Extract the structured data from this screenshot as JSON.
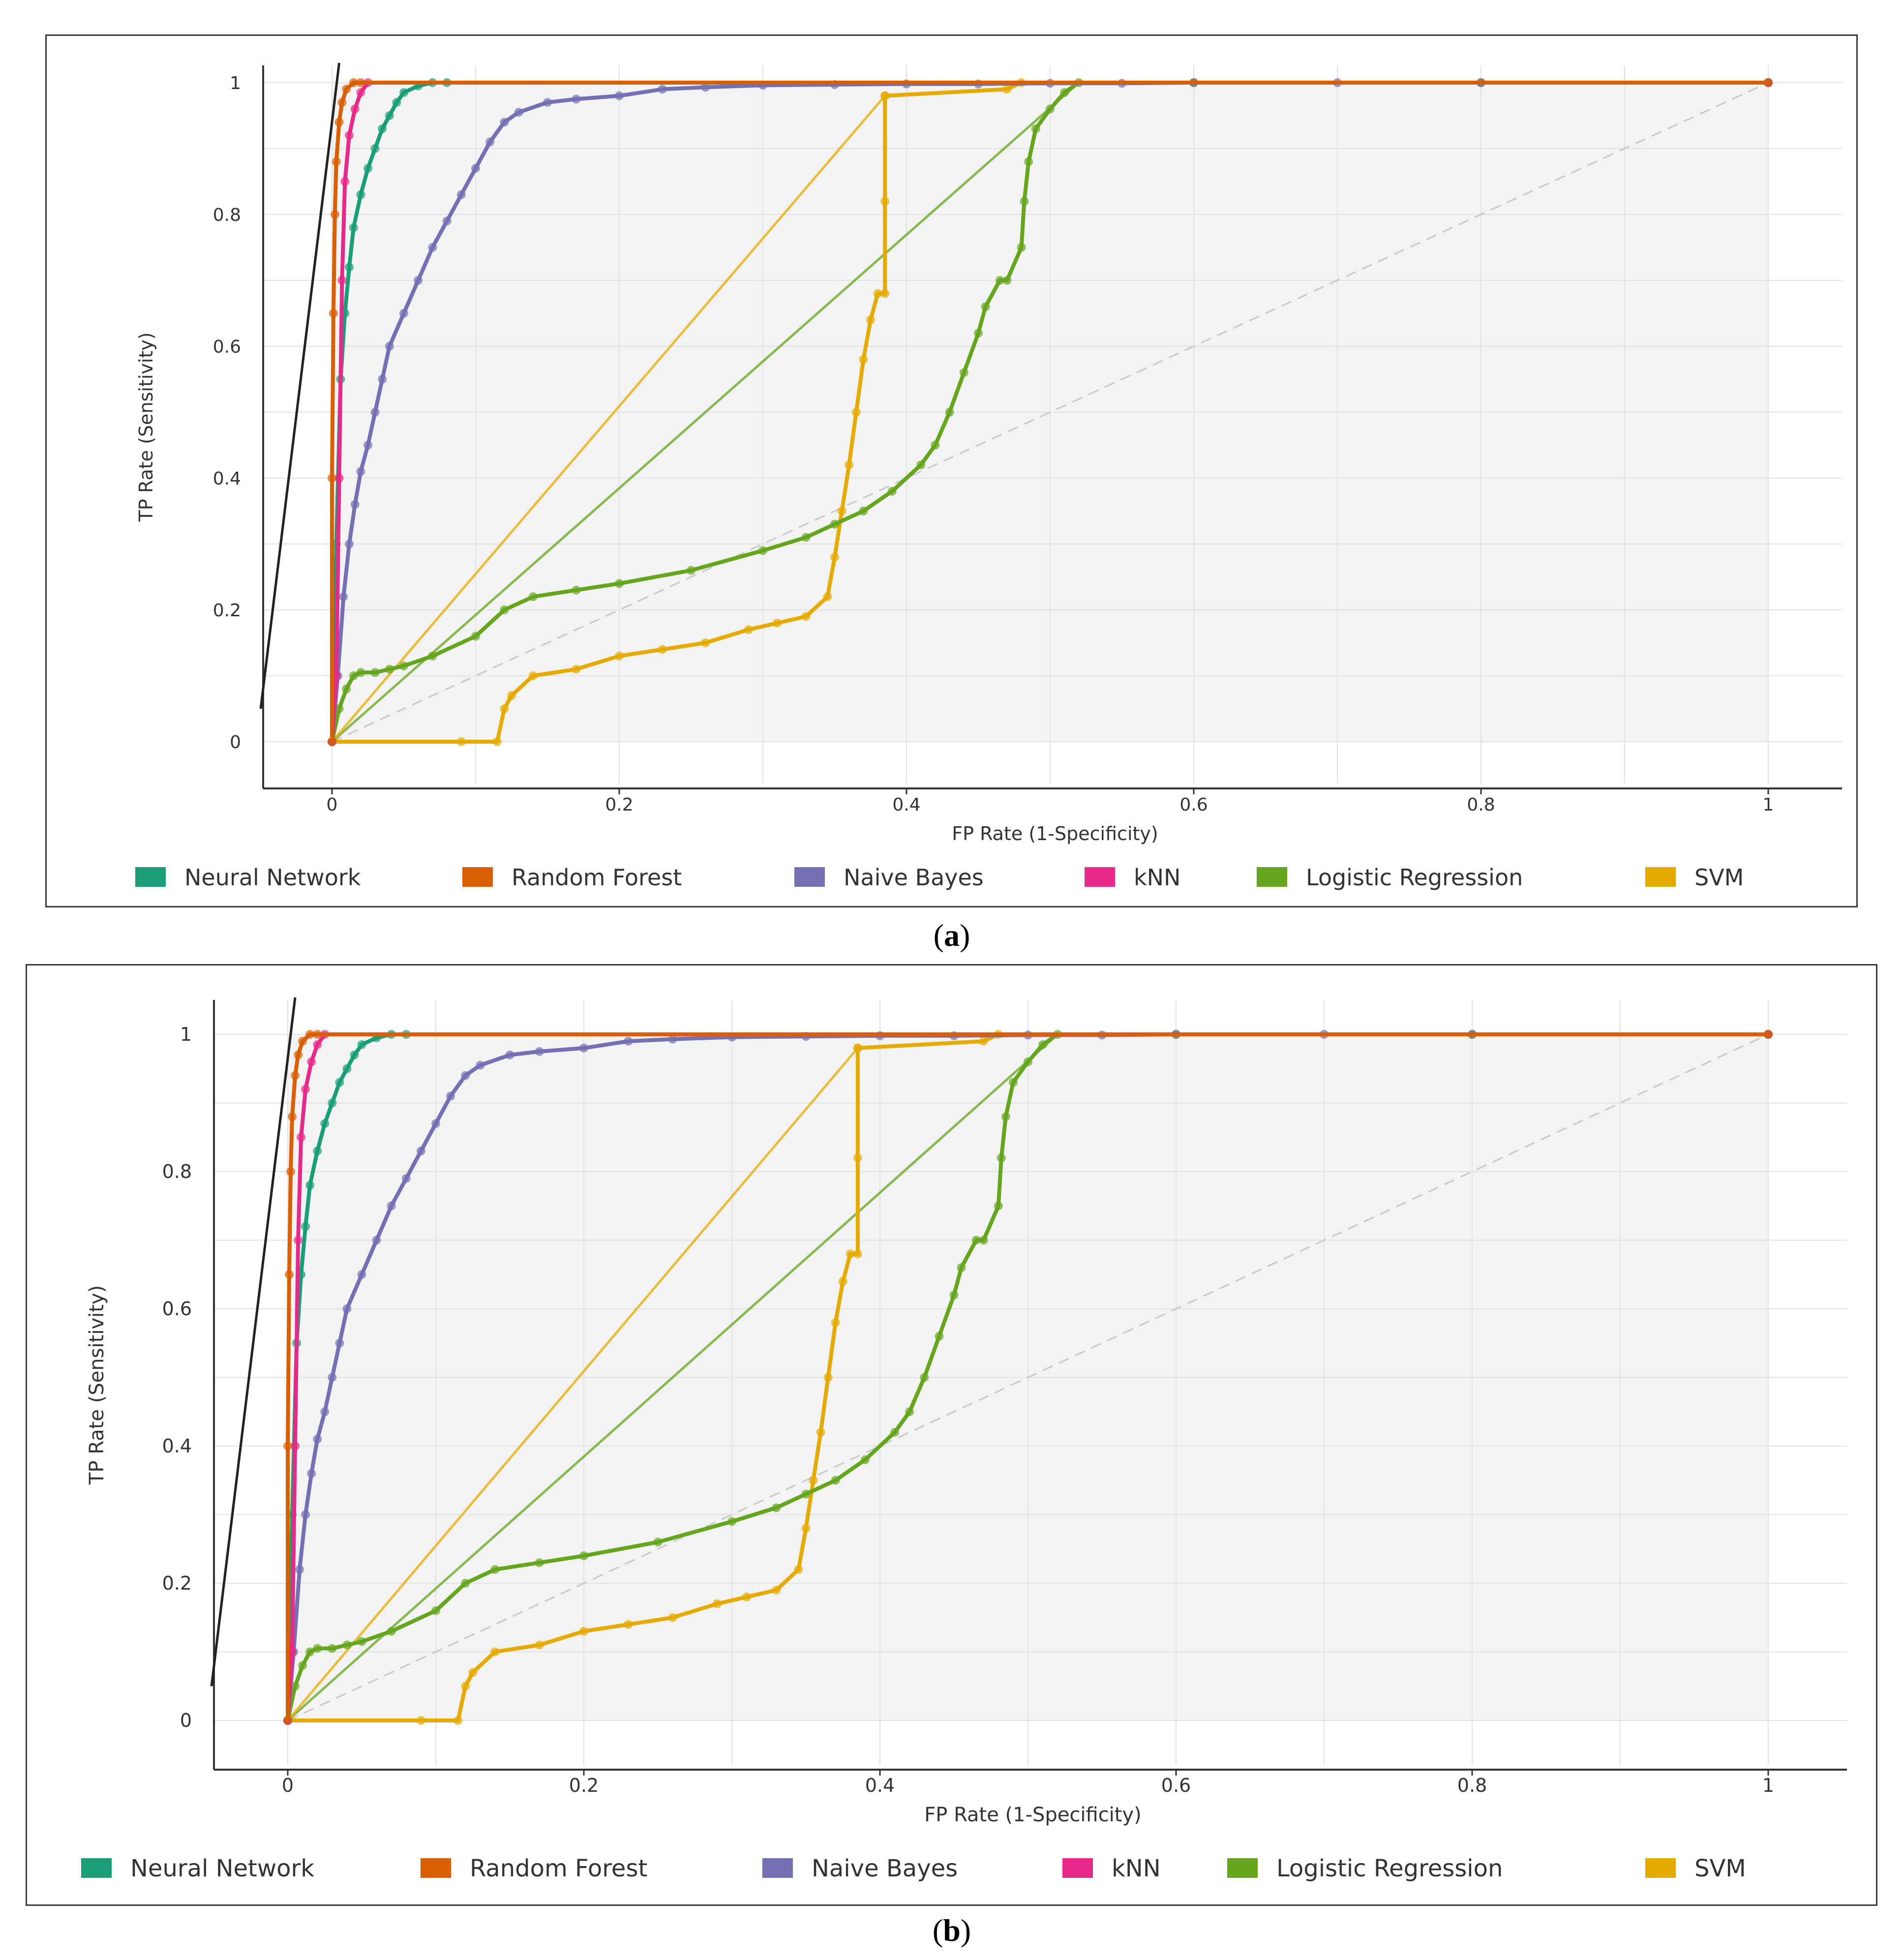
{
  "colors": {
    "neural_network": "#1a9e77",
    "random_forest": "#d95f02",
    "naive_bayes": "#7570b3",
    "knn": "#e7298a",
    "logistic_regression": "#66a61e",
    "svm": "#e6ab02"
  },
  "chart_data": [
    {
      "type": "line",
      "panel": "a",
      "caption_open": "(",
      "caption_label": "a",
      "caption_close": ")",
      "xlabel": "FP Rate (1-Specificity)",
      "ylabel": "TP Rate (Sensitivity)",
      "xlim": [
        -0.05,
        1.05
      ],
      "ylim": [
        -0.05,
        1.05
      ],
      "x_ticks": [
        0,
        0.2,
        0.4,
        0.6,
        0.8,
        1
      ],
      "x_tick_labels": [
        "0",
        "0.2",
        "0.4",
        "0.6",
        "0.8",
        "1"
      ],
      "y_ticks": [
        0,
        0.2,
        0.4,
        0.6,
        0.8,
        1
      ],
      "y_tick_labels": [
        "0",
        "0.2",
        "0.4",
        "0.6",
        "0.8",
        "1"
      ],
      "grid": true,
      "diagonal": [
        [
          0,
          0
        ],
        [
          1,
          1
        ]
      ],
      "legend_position": "bottom",
      "legend": [
        "Neural Network",
        "Random Forest",
        "Naive Bayes",
        "kNN",
        "Logistic Regression",
        "SVM"
      ],
      "series": [
        {
          "name": "Neural Network",
          "color_key": "neural_network",
          "x": [
            0,
            0.003,
            0.006,
            0.009,
            0.012,
            0.015,
            0.02,
            0.025,
            0.03,
            0.035,
            0.04,
            0.045,
            0.05,
            0.06,
            0.07,
            0.08,
            1
          ],
          "y": [
            0,
            0.3,
            0.55,
            0.65,
            0.72,
            0.78,
            0.83,
            0.87,
            0.9,
            0.93,
            0.95,
            0.97,
            0.985,
            0.995,
            1,
            1,
            1
          ]
        },
        {
          "name": "Random Forest",
          "color_key": "random_forest",
          "x": [
            0,
            0.0,
            0.001,
            0.002,
            0.003,
            0.005,
            0.007,
            0.01,
            0.015,
            0.02,
            1
          ],
          "y": [
            0,
            0.4,
            0.65,
            0.8,
            0.88,
            0.94,
            0.97,
            0.99,
            1,
            1,
            1
          ]
        },
        {
          "name": "Naive Bayes",
          "color_key": "naive_bayes",
          "x": [
            0,
            0.004,
            0.008,
            0.012,
            0.016,
            0.02,
            0.025,
            0.03,
            0.035,
            0.04,
            0.05,
            0.06,
            0.07,
            0.08,
            0.09,
            0.1,
            0.11,
            0.12,
            0.13,
            0.15,
            0.17,
            0.2,
            0.23,
            0.26,
            0.3,
            0.35,
            0.4,
            0.45,
            0.5,
            0.55,
            0.6,
            0.7,
            0.8,
            1
          ],
          "y": [
            0,
            0.1,
            0.22,
            0.3,
            0.36,
            0.41,
            0.45,
            0.5,
            0.55,
            0.6,
            0.65,
            0.7,
            0.75,
            0.79,
            0.83,
            0.87,
            0.91,
            0.94,
            0.955,
            0.97,
            0.975,
            0.98,
            0.99,
            0.993,
            0.996,
            0.997,
            0.998,
            0.998,
            0.999,
            0.999,
            1,
            1,
            1,
            1
          ]
        },
        {
          "name": "kNN",
          "color_key": "knn",
          "x": [
            0,
            0.003,
            0.005,
            0.007,
            0.009,
            0.012,
            0.016,
            0.02,
            0.025,
            1
          ],
          "y": [
            0,
            0.1,
            0.4,
            0.7,
            0.85,
            0.92,
            0.96,
            0.985,
            1,
            1
          ]
        },
        {
          "name": "Logistic Regression",
          "color_key": "logistic_regression",
          "x": [
            0,
            0.005,
            0.01,
            0.015,
            0.02,
            0.03,
            0.04,
            0.05,
            0.07,
            0.1,
            0.12,
            0.14,
            0.17,
            0.2,
            0.25,
            0.3,
            0.33,
            0.35,
            0.37,
            0.39,
            0.41,
            0.42,
            0.43,
            0.44,
            0.45,
            0.455,
            0.465,
            0.47,
            0.48,
            0.482,
            0.485,
            0.49,
            0.5,
            0.51,
            0.52,
            0.6,
            0.8,
            1
          ],
          "y": [
            0,
            0.05,
            0.08,
            0.1,
            0.105,
            0.105,
            0.11,
            0.115,
            0.13,
            0.16,
            0.2,
            0.22,
            0.23,
            0.24,
            0.26,
            0.29,
            0.31,
            0.33,
            0.35,
            0.38,
            0.42,
            0.45,
            0.5,
            0.56,
            0.62,
            0.66,
            0.7,
            0.7,
            0.75,
            0.82,
            0.88,
            0.93,
            0.96,
            0.985,
            1,
            1,
            1,
            1
          ]
        },
        {
          "name": "Logistic Regression diagonal",
          "color_key": "logistic_regression",
          "x": [
            0,
            0.52
          ],
          "y": [
            0,
            1
          ]
        },
        {
          "name": "SVM",
          "color_key": "svm",
          "x": [
            0,
            0.09,
            0.115,
            0.12,
            0.125,
            0.14,
            0.17,
            0.2,
            0.23,
            0.26,
            0.29,
            0.31,
            0.33,
            0.345,
            0.35,
            0.355,
            0.36,
            0.365,
            0.37,
            0.375,
            0.38,
            0.385,
            0.385,
            0.385,
            0.385,
            0.47,
            0.48,
            0.6,
            0.8,
            1
          ],
          "y": [
            0,
            0,
            0,
            0.05,
            0.07,
            0.1,
            0.11,
            0.13,
            0.14,
            0.15,
            0.17,
            0.18,
            0.19,
            0.22,
            0.28,
            0.35,
            0.42,
            0.5,
            0.58,
            0.64,
            0.68,
            0.68,
            0.82,
            0.98,
            0.98,
            0.99,
            1,
            1,
            1,
            1
          ]
        },
        {
          "name": "SVM diagonal",
          "color_key": "svm",
          "x": [
            0,
            0.385
          ],
          "y": [
            0,
            0.98
          ]
        }
      ]
    },
    {
      "type": "line",
      "panel": "b",
      "caption_open": "(",
      "caption_label": "b",
      "caption_close": ")",
      "xlabel": "FP Rate (1-Specificity)",
      "ylabel": "TP Rate (Sensitivity)",
      "xlim": [
        -0.05,
        1.05
      ],
      "ylim": [
        -0.05,
        1.05
      ],
      "x_ticks": [
        0,
        0.2,
        0.4,
        0.6,
        0.8,
        1
      ],
      "x_tick_labels": [
        "0",
        "0.2",
        "0.4",
        "0.6",
        "0.8",
        "1"
      ],
      "y_ticks": [
        0,
        0.2,
        0.4,
        0.6,
        0.8,
        1
      ],
      "y_tick_labels": [
        "0",
        "0.2",
        "0.4",
        "0.6",
        "0.8",
        "1"
      ],
      "grid": true,
      "diagonal": [
        [
          0,
          0
        ],
        [
          1,
          1
        ]
      ],
      "legend_position": "bottom",
      "legend": [
        "Neural Network",
        "Random Forest",
        "Naive Bayes",
        "kNN",
        "Logistic Regression",
        "SVM"
      ],
      "series": [
        {
          "name": "Neural Network",
          "color_key": "neural_network",
          "x": [
            0,
            0.003,
            0.006,
            0.009,
            0.012,
            0.015,
            0.02,
            0.025,
            0.03,
            0.035,
            0.04,
            0.045,
            0.05,
            0.06,
            0.07,
            0.08,
            1
          ],
          "y": [
            0,
            0.3,
            0.55,
            0.65,
            0.72,
            0.78,
            0.83,
            0.87,
            0.9,
            0.93,
            0.95,
            0.97,
            0.985,
            0.995,
            1,
            1,
            1
          ]
        },
        {
          "name": "Random Forest",
          "color_key": "random_forest",
          "x": [
            0,
            0.0,
            0.001,
            0.002,
            0.003,
            0.005,
            0.007,
            0.01,
            0.015,
            0.02,
            1
          ],
          "y": [
            0,
            0.4,
            0.65,
            0.8,
            0.88,
            0.94,
            0.97,
            0.99,
            1,
            1,
            1
          ]
        },
        {
          "name": "Naive Bayes",
          "color_key": "naive_bayes",
          "x": [
            0,
            0.004,
            0.008,
            0.012,
            0.016,
            0.02,
            0.025,
            0.03,
            0.035,
            0.04,
            0.05,
            0.06,
            0.07,
            0.08,
            0.09,
            0.1,
            0.11,
            0.12,
            0.13,
            0.15,
            0.17,
            0.2,
            0.23,
            0.26,
            0.3,
            0.35,
            0.4,
            0.45,
            0.5,
            0.55,
            0.6,
            0.7,
            0.8,
            1
          ],
          "y": [
            0,
            0.1,
            0.22,
            0.3,
            0.36,
            0.41,
            0.45,
            0.5,
            0.55,
            0.6,
            0.65,
            0.7,
            0.75,
            0.79,
            0.83,
            0.87,
            0.91,
            0.94,
            0.955,
            0.97,
            0.975,
            0.98,
            0.99,
            0.993,
            0.996,
            0.997,
            0.998,
            0.998,
            0.999,
            0.999,
            1,
            1,
            1,
            1
          ]
        },
        {
          "name": "kNN",
          "color_key": "knn",
          "x": [
            0,
            0.003,
            0.005,
            0.007,
            0.009,
            0.012,
            0.016,
            0.02,
            0.025,
            1
          ],
          "y": [
            0,
            0.1,
            0.4,
            0.7,
            0.85,
            0.92,
            0.96,
            0.985,
            1,
            1
          ]
        },
        {
          "name": "Logistic Regression",
          "color_key": "logistic_regression",
          "x": [
            0,
            0.005,
            0.01,
            0.015,
            0.02,
            0.03,
            0.04,
            0.05,
            0.07,
            0.1,
            0.12,
            0.14,
            0.17,
            0.2,
            0.25,
            0.3,
            0.33,
            0.35,
            0.37,
            0.39,
            0.41,
            0.42,
            0.43,
            0.44,
            0.45,
            0.455,
            0.465,
            0.47,
            0.48,
            0.482,
            0.485,
            0.49,
            0.5,
            0.51,
            0.52,
            0.6,
            0.8,
            1
          ],
          "y": [
            0,
            0.05,
            0.08,
            0.1,
            0.105,
            0.105,
            0.11,
            0.115,
            0.13,
            0.16,
            0.2,
            0.22,
            0.23,
            0.24,
            0.26,
            0.29,
            0.31,
            0.33,
            0.35,
            0.38,
            0.42,
            0.45,
            0.5,
            0.56,
            0.62,
            0.66,
            0.7,
            0.7,
            0.75,
            0.82,
            0.88,
            0.93,
            0.96,
            0.985,
            1,
            1,
            1,
            1
          ]
        },
        {
          "name": "Logistic Regression diagonal",
          "color_key": "logistic_regression",
          "x": [
            0,
            0.52
          ],
          "y": [
            0,
            1
          ]
        },
        {
          "name": "SVM",
          "color_key": "svm",
          "x": [
            0,
            0.09,
            0.115,
            0.12,
            0.125,
            0.14,
            0.17,
            0.2,
            0.23,
            0.26,
            0.29,
            0.31,
            0.33,
            0.345,
            0.35,
            0.355,
            0.36,
            0.365,
            0.37,
            0.375,
            0.38,
            0.385,
            0.385,
            0.385,
            0.385,
            0.47,
            0.48,
            0.6,
            0.8,
            1
          ],
          "y": [
            0,
            0,
            0,
            0.05,
            0.07,
            0.1,
            0.11,
            0.13,
            0.14,
            0.15,
            0.17,
            0.18,
            0.19,
            0.22,
            0.28,
            0.35,
            0.42,
            0.5,
            0.58,
            0.64,
            0.68,
            0.68,
            0.82,
            0.98,
            0.98,
            0.99,
            1,
            1,
            1,
            1
          ]
        },
        {
          "name": "SVM diagonal",
          "color_key": "svm",
          "x": [
            0,
            0.385
          ],
          "y": [
            0,
            0.98
          ]
        }
      ]
    }
  ]
}
